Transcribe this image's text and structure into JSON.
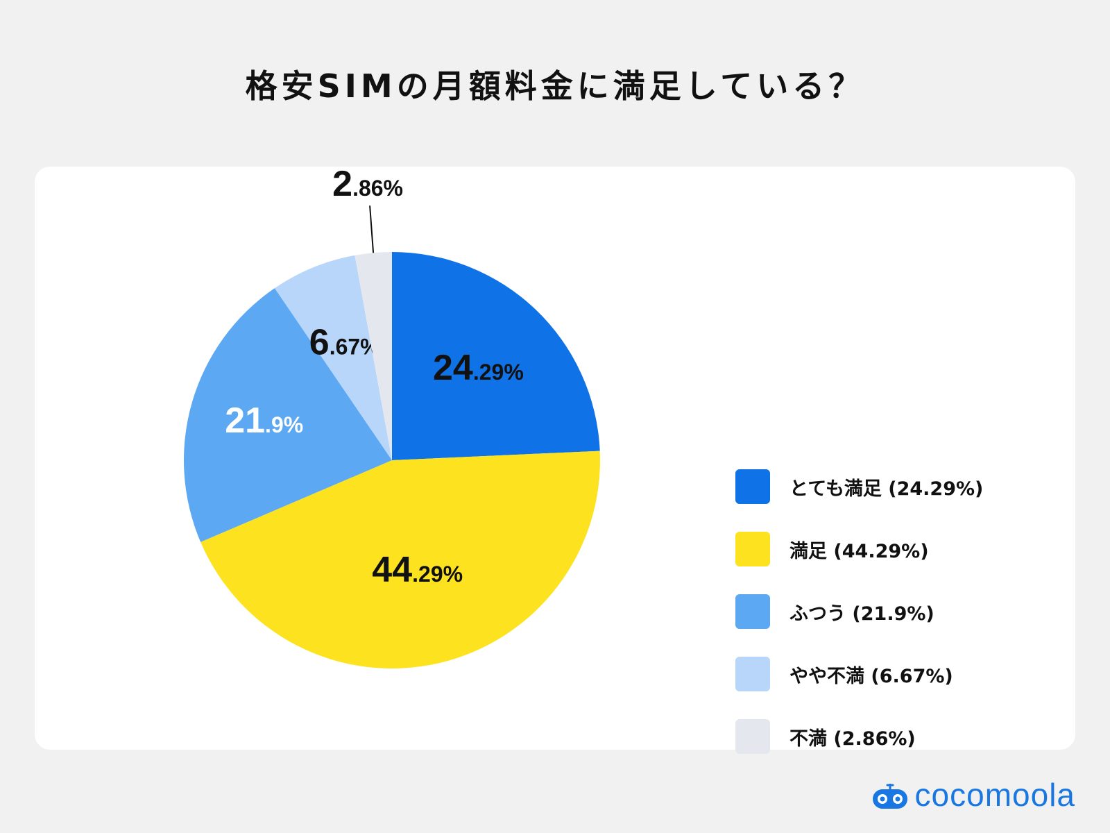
{
  "chart_data": {
    "type": "pie",
    "title": "格安SIMの月額料金に満足している？",
    "slices": [
      {
        "label": "とても満足",
        "value": 24.29,
        "color": "#0f72e6",
        "int": "24",
        "dec": ".29%",
        "legend": "とても満足 (24.29%)",
        "text_color": "#111111"
      },
      {
        "label": "満足",
        "value": 44.29,
        "color": "#fde31f",
        "int": "44",
        "dec": ".29%",
        "legend": "満足 (44.29%)",
        "text_color": "#111111"
      },
      {
        "label": "ふつう",
        "value": 21.9,
        "color": "#5ca8f2",
        "int": "21",
        "dec": ".9%",
        "legend": "ふつう (21.9%)",
        "text_color": "#ffffff"
      },
      {
        "label": "やや不満",
        "value": 6.67,
        "color": "#b7d6fa",
        "int": "6",
        "dec": ".67%",
        "legend": "やや不満 (6.67%)",
        "text_color": "#111111"
      },
      {
        "label": "不満",
        "value": 2.86,
        "color": "#e4e8ee",
        "int": "2",
        "dec": ".86%",
        "legend": "不満 (2.86%)",
        "text_color": "#111111"
      }
    ],
    "legend_position": "right"
  },
  "brand": {
    "name": "cocomoola",
    "color": "#1877e3"
  }
}
